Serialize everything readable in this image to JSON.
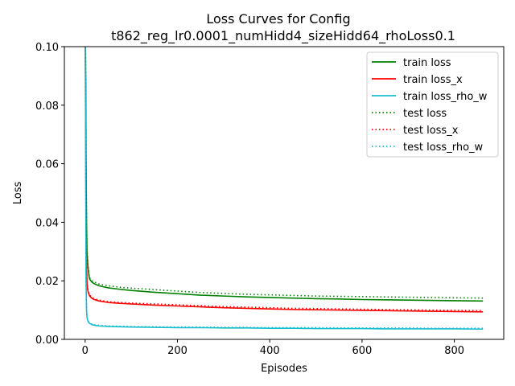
{
  "chart_data": {
    "type": "line",
    "title_line1": "Loss Curves for Config",
    "title_line2": "t862_reg_lr0.0001_numHidd4_sizeHidd64_rhoLoss0.1",
    "xlabel": "Episodes",
    "ylabel": "Loss",
    "xlim": [
      -45,
      907
    ],
    "ylim": [
      0.0,
      0.1
    ],
    "xticks": [
      0,
      200,
      400,
      600,
      800
    ],
    "yticks": [
      0.0,
      0.02,
      0.04,
      0.06,
      0.08,
      0.1
    ],
    "xtick_labels": [
      "0",
      "200",
      "400",
      "600",
      "800"
    ],
    "ytick_labels": [
      "0.00",
      "0.02",
      "0.04",
      "0.06",
      "0.08",
      "0.10"
    ],
    "grid": false,
    "legend_position": "top-right",
    "x": [
      0,
      1,
      2,
      3,
      4,
      6,
      8,
      10,
      15,
      20,
      30,
      50,
      75,
      100,
      150,
      200,
      250,
      300,
      350,
      400,
      450,
      500,
      550,
      600,
      650,
      700,
      750,
      800,
      862
    ],
    "series": [
      {
        "name": "train loss",
        "style": "solid",
        "color": "#008000",
        "values": [
          0.11,
          0.095,
          0.06,
          0.04,
          0.03,
          0.025,
          0.022,
          0.0205,
          0.0195,
          0.019,
          0.0183,
          0.0176,
          0.0171,
          0.0167,
          0.0161,
          0.0156,
          0.0151,
          0.0148,
          0.0145,
          0.0143,
          0.0141,
          0.0139,
          0.0138,
          0.0136,
          0.0135,
          0.0134,
          0.0133,
          0.0132,
          0.0131
        ]
      },
      {
        "name": "train loss_x",
        "style": "solid",
        "color": "#ff0000",
        "values": [
          0.11,
          0.085,
          0.04,
          0.025,
          0.019,
          0.0165,
          0.0155,
          0.0148,
          0.014,
          0.0136,
          0.0131,
          0.0126,
          0.0123,
          0.0121,
          0.0117,
          0.0114,
          0.0111,
          0.0108,
          0.0106,
          0.0104,
          0.0102,
          0.0101,
          0.01,
          0.0099,
          0.0098,
          0.0097,
          0.0096,
          0.0095,
          0.0094
        ]
      },
      {
        "name": "train loss_rho_w",
        "style": "solid",
        "color": "#17becf",
        "values": [
          0.11,
          0.07,
          0.02,
          0.01,
          0.0075,
          0.0062,
          0.0057,
          0.0054,
          0.005,
          0.0048,
          0.0046,
          0.0044,
          0.0043,
          0.0042,
          0.0041,
          0.004,
          0.004,
          0.0039,
          0.0039,
          0.0038,
          0.0038,
          0.0037,
          0.0037,
          0.0037,
          0.0036,
          0.0036,
          0.0036,
          0.0036,
          0.0035
        ]
      },
      {
        "name": "test loss",
        "style": "dotted",
        "color": "#008000",
        "values": [
          0.11,
          0.096,
          0.061,
          0.041,
          0.031,
          0.026,
          0.0225,
          0.021,
          0.02,
          0.0196,
          0.0189,
          0.0183,
          0.0178,
          0.0175,
          0.017,
          0.0165,
          0.016,
          0.0157,
          0.0154,
          0.0152,
          0.015,
          0.0148,
          0.0147,
          0.0146,
          0.0145,
          0.0144,
          0.0143,
          0.0142,
          0.0141
        ]
      },
      {
        "name": "test loss_x",
        "style": "dotted",
        "color": "#ff0000",
        "values": [
          0.11,
          0.086,
          0.041,
          0.0255,
          0.0195,
          0.017,
          0.0158,
          0.0151,
          0.0143,
          0.0139,
          0.0134,
          0.0129,
          0.0126,
          0.0124,
          0.0121,
          0.0118,
          0.0115,
          0.0112,
          0.011,
          0.0108,
          0.0106,
          0.0105,
          0.0104,
          0.0103,
          0.0102,
          0.0101,
          0.01,
          0.0099,
          0.0098
        ]
      },
      {
        "name": "test loss_rho_w",
        "style": "dotted",
        "color": "#17becf",
        "values": [
          0.11,
          0.071,
          0.021,
          0.0105,
          0.0078,
          0.0064,
          0.0059,
          0.0056,
          0.0052,
          0.005,
          0.0048,
          0.0046,
          0.0045,
          0.0044,
          0.0043,
          0.0042,
          0.0042,
          0.0041,
          0.0041,
          0.004,
          0.004,
          0.004,
          0.0039,
          0.0039,
          0.0039,
          0.0039,
          0.0038,
          0.0038,
          0.0038
        ]
      }
    ]
  }
}
